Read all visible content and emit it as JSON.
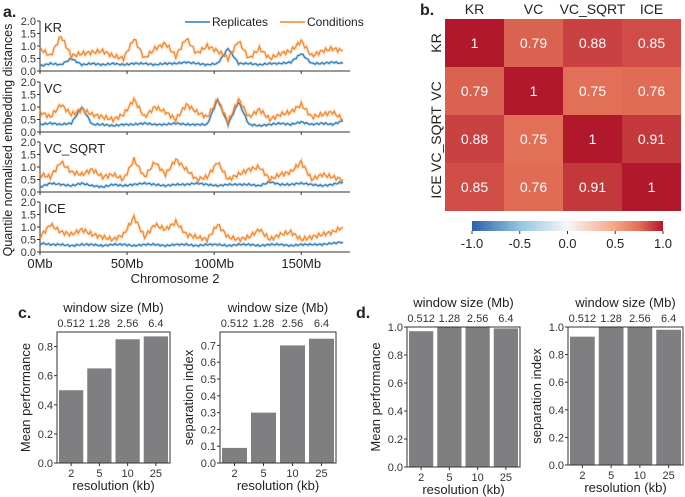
{
  "panel_labels": {
    "a": "a.",
    "b": "b.",
    "c": "c.",
    "d": "d."
  },
  "chart_data": [
    {
      "type": "line",
      "panel": "a",
      "ylabel": "Quantile normalised embedding distances",
      "xlabel": "Chromosome 2",
      "xticks": [
        "0Mb",
        "50Mb",
        "100Mb",
        "150Mb"
      ],
      "xtick_values": [
        0,
        50,
        100,
        150
      ],
      "xlim": [
        0,
        178
      ],
      "ylim": [
        0,
        2
      ],
      "yticks": [
        "0.0",
        "0.5",
        "1.0",
        "1.5",
        "2.0"
      ],
      "legend": [
        "Replicates",
        "Conditions"
      ],
      "legend_position": "top-right",
      "colors": {
        "Replicates": "#2b7bba",
        "Conditions": "#f58426"
      },
      "x": [
        0,
        6,
        12,
        18,
        24,
        30,
        36,
        42,
        48,
        54,
        60,
        66,
        72,
        78,
        84,
        90,
        96,
        102,
        108,
        114,
        120,
        126,
        132,
        138,
        144,
        150,
        156,
        162,
        168,
        174
      ],
      "subplots": [
        {
          "title": "KR",
          "series": [
            {
              "name": "Replicates",
              "values": [
                0.2,
                0.3,
                0.25,
                0.5,
                0.25,
                0.3,
                0.25,
                0.3,
                0.25,
                0.3,
                0.3,
                0.25,
                0.3,
                0.3,
                0.35,
                0.3,
                0.25,
                0.3,
                0.9,
                0.3,
                0.3,
                0.25,
                0.3,
                0.3,
                0.35,
                0.7,
                0.3,
                0.3,
                0.35,
                0.3
              ]
            },
            {
              "name": "Conditions",
              "values": [
                0.9,
                0.6,
                1.4,
                0.6,
                0.7,
                0.75,
                0.8,
                0.6,
                0.5,
                1.3,
                0.5,
                0.9,
                1.1,
                0.6,
                1.3,
                0.7,
                1.0,
                0.8,
                0.5,
                1.2,
                0.5,
                0.9,
                0.5,
                0.7,
                0.8,
                1.2,
                0.6,
                0.8,
                0.9,
                0.8
              ]
            }
          ]
        },
        {
          "title": "VC",
          "series": [
            {
              "name": "Replicates",
              "values": [
                0.3,
                0.35,
                0.3,
                0.35,
                1.0,
                0.3,
                0.3,
                0.25,
                0.3,
                0.3,
                0.35,
                0.3,
                0.3,
                0.35,
                0.3,
                0.3,
                0.3,
                1.3,
                0.3,
                1.2,
                0.3,
                0.25,
                0.3,
                0.35,
                0.3,
                0.4,
                0.3,
                0.35,
                0.3,
                0.45
              ]
            },
            {
              "name": "Conditions",
              "values": [
                0.8,
                0.6,
                1.1,
                0.7,
                0.9,
                0.7,
                0.6,
                0.5,
                0.7,
                1.3,
                0.6,
                1.0,
                0.8,
                0.5,
                1.1,
                0.8,
                0.6,
                1.3,
                0.4,
                1.3,
                0.6,
                0.9,
                0.5,
                0.7,
                0.8,
                1.1,
                0.6,
                0.7,
                0.8,
                0.5
              ]
            }
          ]
        },
        {
          "title": "VC_SQRT",
          "series": [
            {
              "name": "Replicates",
              "values": [
                0.2,
                0.35,
                0.3,
                0.25,
                0.35,
                0.25,
                0.2,
                0.3,
                0.25,
                0.3,
                0.35,
                0.3,
                0.25,
                0.3,
                0.3,
                0.35,
                0.3,
                0.25,
                0.3,
                0.3,
                0.3,
                0.25,
                0.4,
                0.3,
                0.3,
                0.35,
                0.3,
                0.25,
                0.3,
                0.4
              ]
            },
            {
              "name": "Conditions",
              "values": [
                0.7,
                0.6,
                1.2,
                0.8,
                0.7,
                0.9,
                0.6,
                0.7,
                0.5,
                1.3,
                0.6,
                1.2,
                0.7,
                1.3,
                0.9,
                0.5,
                0.6,
                1.2,
                0.5,
                0.7,
                0.9,
                1.0,
                0.5,
                0.7,
                0.8,
                1.2,
                0.5,
                0.7,
                0.6,
                0.5
              ]
            }
          ]
        },
        {
          "title": "ICE",
          "series": [
            {
              "name": "Replicates",
              "values": [
                0.35,
                0.3,
                0.3,
                0.25,
                0.3,
                0.3,
                0.25,
                0.3,
                0.3,
                0.25,
                0.3,
                0.3,
                0.25,
                0.3,
                0.3,
                0.25,
                0.3,
                0.3,
                0.25,
                0.3,
                0.3,
                0.25,
                0.3,
                0.3,
                0.25,
                0.3,
                0.3,
                0.3,
                0.35,
                0.4
              ]
            },
            {
              "name": "Conditions",
              "values": [
                0.6,
                1.1,
                0.8,
                0.7,
                0.9,
                0.7,
                0.6,
                0.5,
                0.7,
                1.4,
                0.6,
                1.1,
                0.9,
                1.2,
                0.7,
                0.6,
                0.5,
                1.1,
                0.6,
                0.5,
                0.6,
                0.9,
                0.5,
                0.7,
                0.8,
                0.5,
                0.6,
                0.7,
                0.8,
                1.0
              ]
            }
          ]
        }
      ]
    },
    {
      "type": "heatmap",
      "panel": "b",
      "labels": [
        "KR",
        "VC",
        "VC_SQRT",
        "ICE"
      ],
      "values": [
        [
          1,
          0.79,
          0.88,
          0.85
        ],
        [
          0.79,
          1,
          0.75,
          0.76
        ],
        [
          0.88,
          0.75,
          1,
          0.91
        ],
        [
          0.85,
          0.76,
          0.91,
          1
        ]
      ],
      "value_labels": [
        [
          "1",
          "0.79",
          "0.88",
          "0.85"
        ],
        [
          "0.79",
          "1",
          "0.75",
          "0.76"
        ],
        [
          "0.88",
          "0.75",
          "1",
          "0.91"
        ],
        [
          "0.85",
          "0.76",
          "0.91",
          "1"
        ]
      ],
      "colorbar": {
        "range": [
          -1,
          1
        ],
        "ticks": [
          "-1.0",
          "-0.5",
          "0.0",
          "0.5",
          "1.0"
        ],
        "colormap": "RdBu_r",
        "low": "#2f5fad",
        "mid": "#f5f5f5",
        "high": "#b2182b"
      }
    },
    {
      "type": "bar",
      "panel": "c",
      "categories": [
        "2",
        "5",
        "10",
        "25"
      ],
      "top_categories": [
        "0.512",
        "1.28",
        "2.56",
        "6.4"
      ],
      "values": [
        0.5,
        0.65,
        0.85,
        0.87
      ],
      "xlabel": "resolution (kb)",
      "top_xlabel": "window size (Mb)",
      "ylabel": "Mean performance",
      "ylim": [
        0,
        0.9
      ],
      "yticks": [
        "0.0",
        "0.2",
        "0.4",
        "0.6",
        "0.8"
      ],
      "color": "#7f7f82"
    },
    {
      "type": "bar",
      "panel": "c",
      "categories": [
        "2",
        "5",
        "10",
        "25"
      ],
      "top_categories": [
        "0.512",
        "1.28",
        "2.56",
        "6.4"
      ],
      "values": [
        0.09,
        0.3,
        0.7,
        0.74
      ],
      "xlabel": "resolution (kb)",
      "top_xlabel": "window size (Mb)",
      "ylabel": "separation index",
      "ylim": [
        0,
        0.78
      ],
      "yticks": [
        "0.0",
        "0.1",
        "0.2",
        "0.3",
        "0.4",
        "0.5",
        "0.6",
        "0.7"
      ],
      "color": "#7f7f82"
    },
    {
      "type": "bar",
      "panel": "d",
      "categories": [
        "2",
        "5",
        "10",
        "25"
      ],
      "top_categories": [
        "0.512",
        "1.28",
        "2.56",
        "6.4"
      ],
      "values": [
        0.97,
        1.0,
        1.0,
        0.99
      ],
      "xlabel": "resolution (kb)",
      "top_xlabel": "window size (Mb)",
      "ylabel": "Mean performance",
      "ylim": [
        0,
        1.0
      ],
      "yticks": [
        "0.0",
        "0.2",
        "0.4",
        "0.6",
        "0.8",
        "1.0"
      ],
      "color": "#7f7f82"
    },
    {
      "type": "bar",
      "panel": "d",
      "categories": [
        "2",
        "5",
        "10",
        "25"
      ],
      "top_categories": [
        "0.512",
        "1.28",
        "2.56",
        "6.4"
      ],
      "values": [
        0.93,
        1.0,
        1.0,
        0.98
      ],
      "xlabel": "resolution (kb)",
      "top_xlabel": "window size (Mb)",
      "ylabel": "separation index",
      "ylim": [
        0,
        1.0
      ],
      "yticks": [
        "0.0",
        "0.2",
        "0.4",
        "0.6",
        "0.8",
        "1.0"
      ],
      "color": "#7f7f82"
    }
  ]
}
